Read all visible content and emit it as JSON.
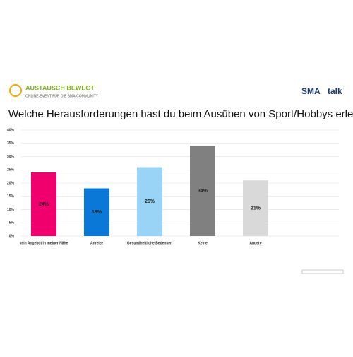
{
  "header": {
    "event_title": "AUSTAUSCH BEWEGT",
    "event_subtitle": "ONLINE-EVENT FÜR DIE SMA-COMMUNITY",
    "brand_a": "SMA",
    "brand_b": "talk"
  },
  "chart_data": {
    "type": "bar",
    "title": "Welche Herausforderungen hast du beim Ausüben von Sport/Hobbys erlebt?",
    "categories": [
      "kein Angebot in meiner Nähe",
      "Anreize",
      "Gesundheitliche Bedenken",
      "Keine",
      "Andere"
    ],
    "values": [
      24,
      18,
      26,
      34,
      21
    ],
    "value_labels": [
      "24%",
      "18%",
      "26%",
      "34%",
      "21%"
    ],
    "colors": [
      "#f0006c",
      "#0a78d6",
      "#99d3f5",
      "#808080",
      "#d9d9d9"
    ],
    "ylim": [
      0,
      40
    ],
    "yticks": [
      {
        "value": 0,
        "label": "0%"
      },
      {
        "value": 5,
        "label": "5%"
      },
      {
        "value": 10,
        "label": "10%"
      },
      {
        "value": 15,
        "label": "15%"
      },
      {
        "value": 20,
        "label": "20%"
      },
      {
        "value": 25,
        "label": "25%"
      },
      {
        "value": 30,
        "label": "30%"
      },
      {
        "value": 35,
        "label": "35%"
      },
      {
        "value": 40,
        "label": "40%"
      }
    ],
    "grid": true
  }
}
